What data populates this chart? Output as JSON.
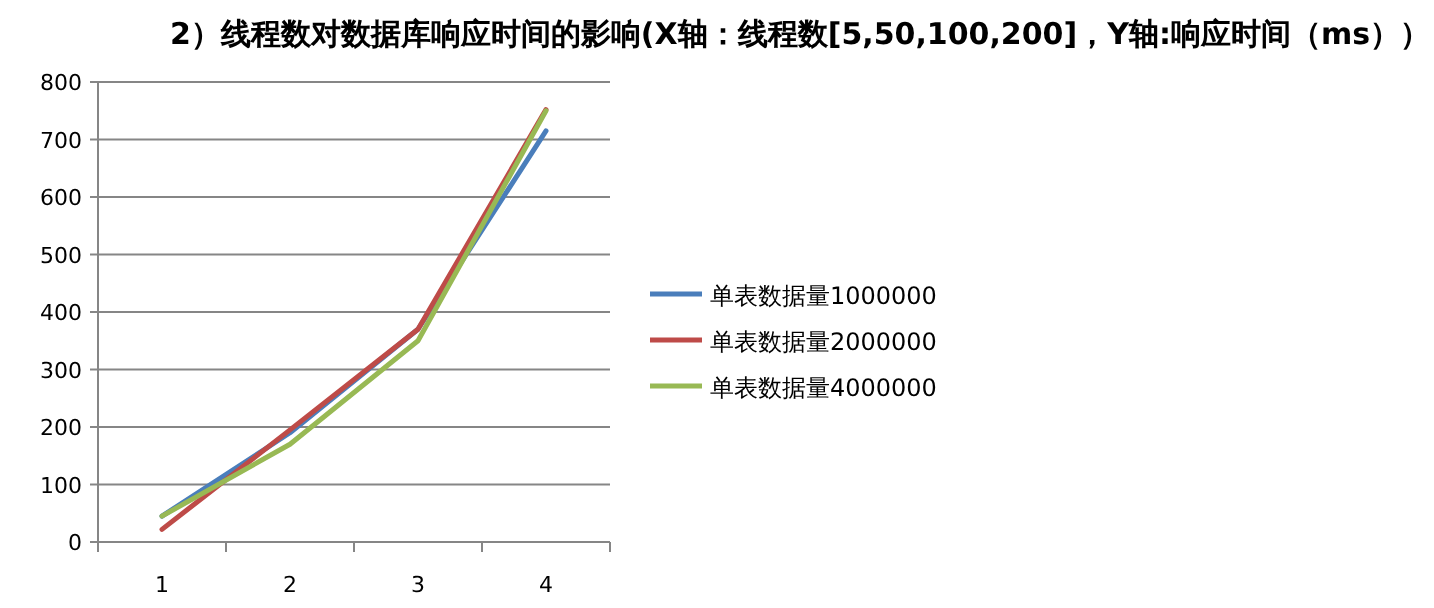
{
  "chart_data": {
    "type": "line",
    "title": "2）线程数对数据库响应时间的影响(X轴：线程数[5,50,100,200]，Y轴:响应时间（ms））",
    "categories": [
      "1",
      "2",
      "3",
      "4"
    ],
    "series": [
      {
        "name": "单表数据量1000000",
        "color": "#4a7ebb",
        "values": [
          45,
          190,
          370,
          715
        ]
      },
      {
        "name": "单表数据量2000000",
        "color": "#be4b48",
        "values": [
          22,
          195,
          370,
          752
        ]
      },
      {
        "name": "单表数据量4000000",
        "color": "#98b954",
        "values": [
          45,
          170,
          350,
          750
        ]
      }
    ],
    "ylim": [
      0,
      800
    ],
    "yticks": [
      0,
      100,
      200,
      300,
      400,
      500,
      600,
      700,
      800
    ],
    "grid": "y",
    "legend": "right",
    "marker": "none",
    "line_style": "solid"
  }
}
